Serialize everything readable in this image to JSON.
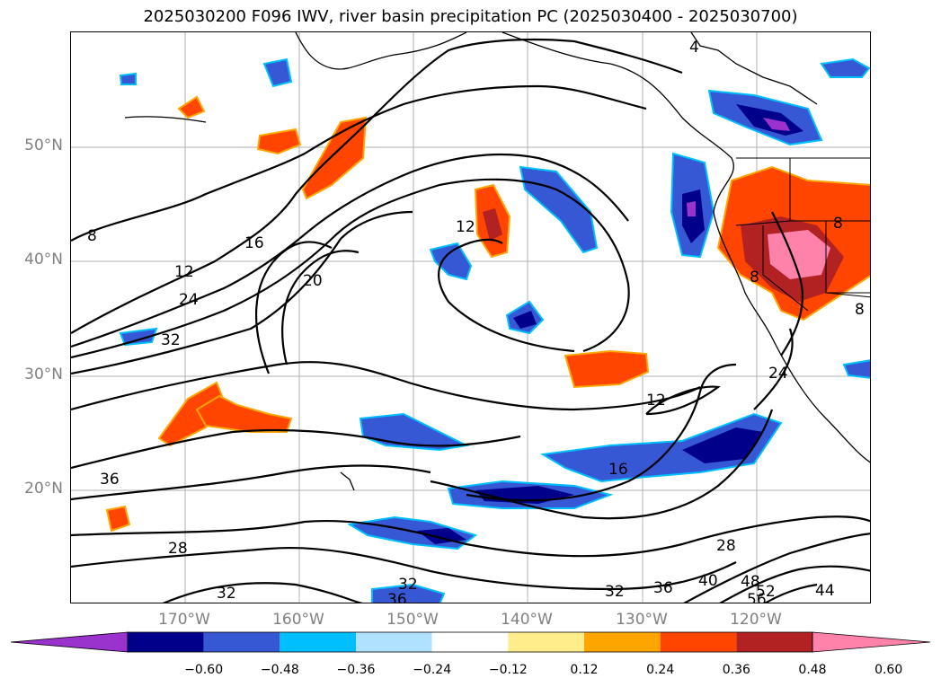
{
  "title": "2025030200 F096 IWV, river basin precipitation PC (2025030400 - 2025030700)",
  "latitude_labels": [
    "50°N",
    "40°N",
    "30°N",
    "20°N"
  ],
  "longitude_labels": [
    "170°W",
    "160°W",
    "150°W",
    "140°W",
    "130°W",
    "120°W"
  ],
  "colorbar": {
    "ticks": [
      "−0.60",
      "−0.48",
      "−0.36",
      "−0.24",
      "−0.12",
      "0.12",
      "0.24",
      "0.36",
      "0.48",
      "0.60"
    ],
    "colors": [
      "#9a32cd",
      "#00008b",
      "#3658d4",
      "#00bfff",
      "#b0e2ff",
      "#ffffff",
      "#ffec8b",
      "#ffa500",
      "#ff4500",
      "#b22222",
      "#ff82ab"
    ]
  },
  "contour_labels": [
    {
      "text": "4"
    },
    {
      "text": "8"
    },
    {
      "text": "12"
    },
    {
      "text": "16"
    },
    {
      "text": "20"
    },
    {
      "text": "24"
    },
    {
      "text": "32"
    },
    {
      "text": "12"
    },
    {
      "text": "12"
    },
    {
      "text": "16"
    },
    {
      "text": "24"
    },
    {
      "text": "28"
    },
    {
      "text": "28"
    },
    {
      "text": "32"
    },
    {
      "text": "36"
    },
    {
      "text": "36"
    },
    {
      "text": "40"
    },
    {
      "text": "48"
    },
    {
      "text": "52"
    },
    {
      "text": "56"
    },
    {
      "text": "44"
    },
    {
      "text": "32"
    },
    {
      "text": "36"
    },
    {
      "text": "32"
    },
    {
      "text": "8"
    },
    {
      "text": "8"
    },
    {
      "text": "8"
    }
  ]
}
